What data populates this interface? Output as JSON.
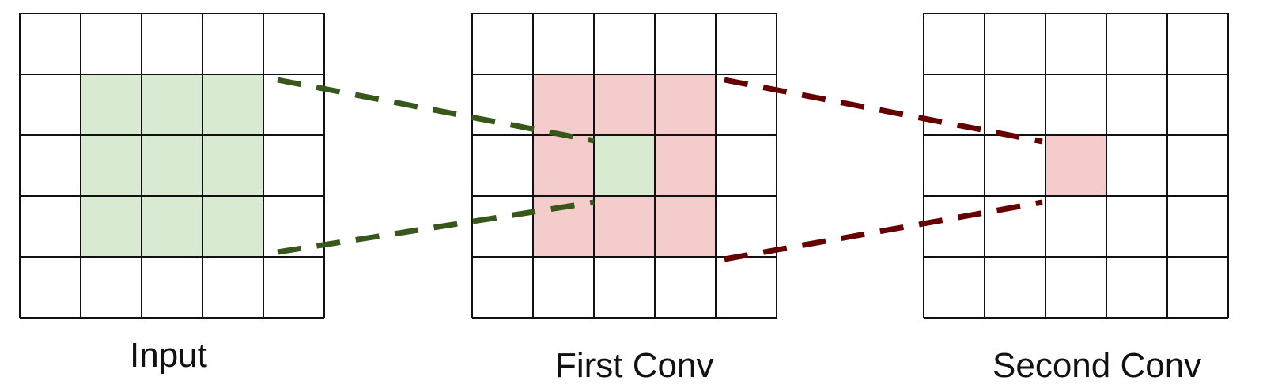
{
  "diagram": {
    "title": "",
    "grids": [
      {
        "id": "input",
        "label": "Input",
        "rows": 5,
        "cols": 5,
        "highlight_color": "#d9ead3",
        "highlighted_cells": [
          [
            1,
            1
          ],
          [
            1,
            2
          ],
          [
            1,
            3
          ],
          [
            2,
            1
          ],
          [
            2,
            2
          ],
          [
            2,
            3
          ],
          [
            3,
            1
          ],
          [
            3,
            2
          ],
          [
            3,
            3
          ]
        ]
      },
      {
        "id": "first-conv",
        "label": "First Conv",
        "rows": 5,
        "cols": 5,
        "receptive_color": "#f4cccc",
        "receptive_cells": [
          [
            1,
            1
          ],
          [
            1,
            2
          ],
          [
            1,
            3
          ],
          [
            2,
            1
          ],
          [
            2,
            3
          ],
          [
            3,
            1
          ],
          [
            3,
            2
          ],
          [
            3,
            3
          ]
        ],
        "focus_color": "#d9ead3",
        "focus_cells": [
          [
            2,
            2
          ]
        ]
      },
      {
        "id": "second-conv",
        "label": "Second Conv",
        "rows": 5,
        "cols": 5,
        "focus_color": "#f4cccc",
        "focus_cells": [
          [
            2,
            2
          ]
        ]
      }
    ],
    "connections": [
      {
        "id": "input-to-first",
        "from": "input",
        "to": "first-conv",
        "color": "#38571a",
        "style": "dashed"
      },
      {
        "id": "first-to-second",
        "from": "first-conv",
        "to": "second-conv",
        "color": "#660000",
        "style": "dashed"
      }
    ],
    "colors": {
      "grid_line": "#111111",
      "background": "#ffffff"
    }
  }
}
